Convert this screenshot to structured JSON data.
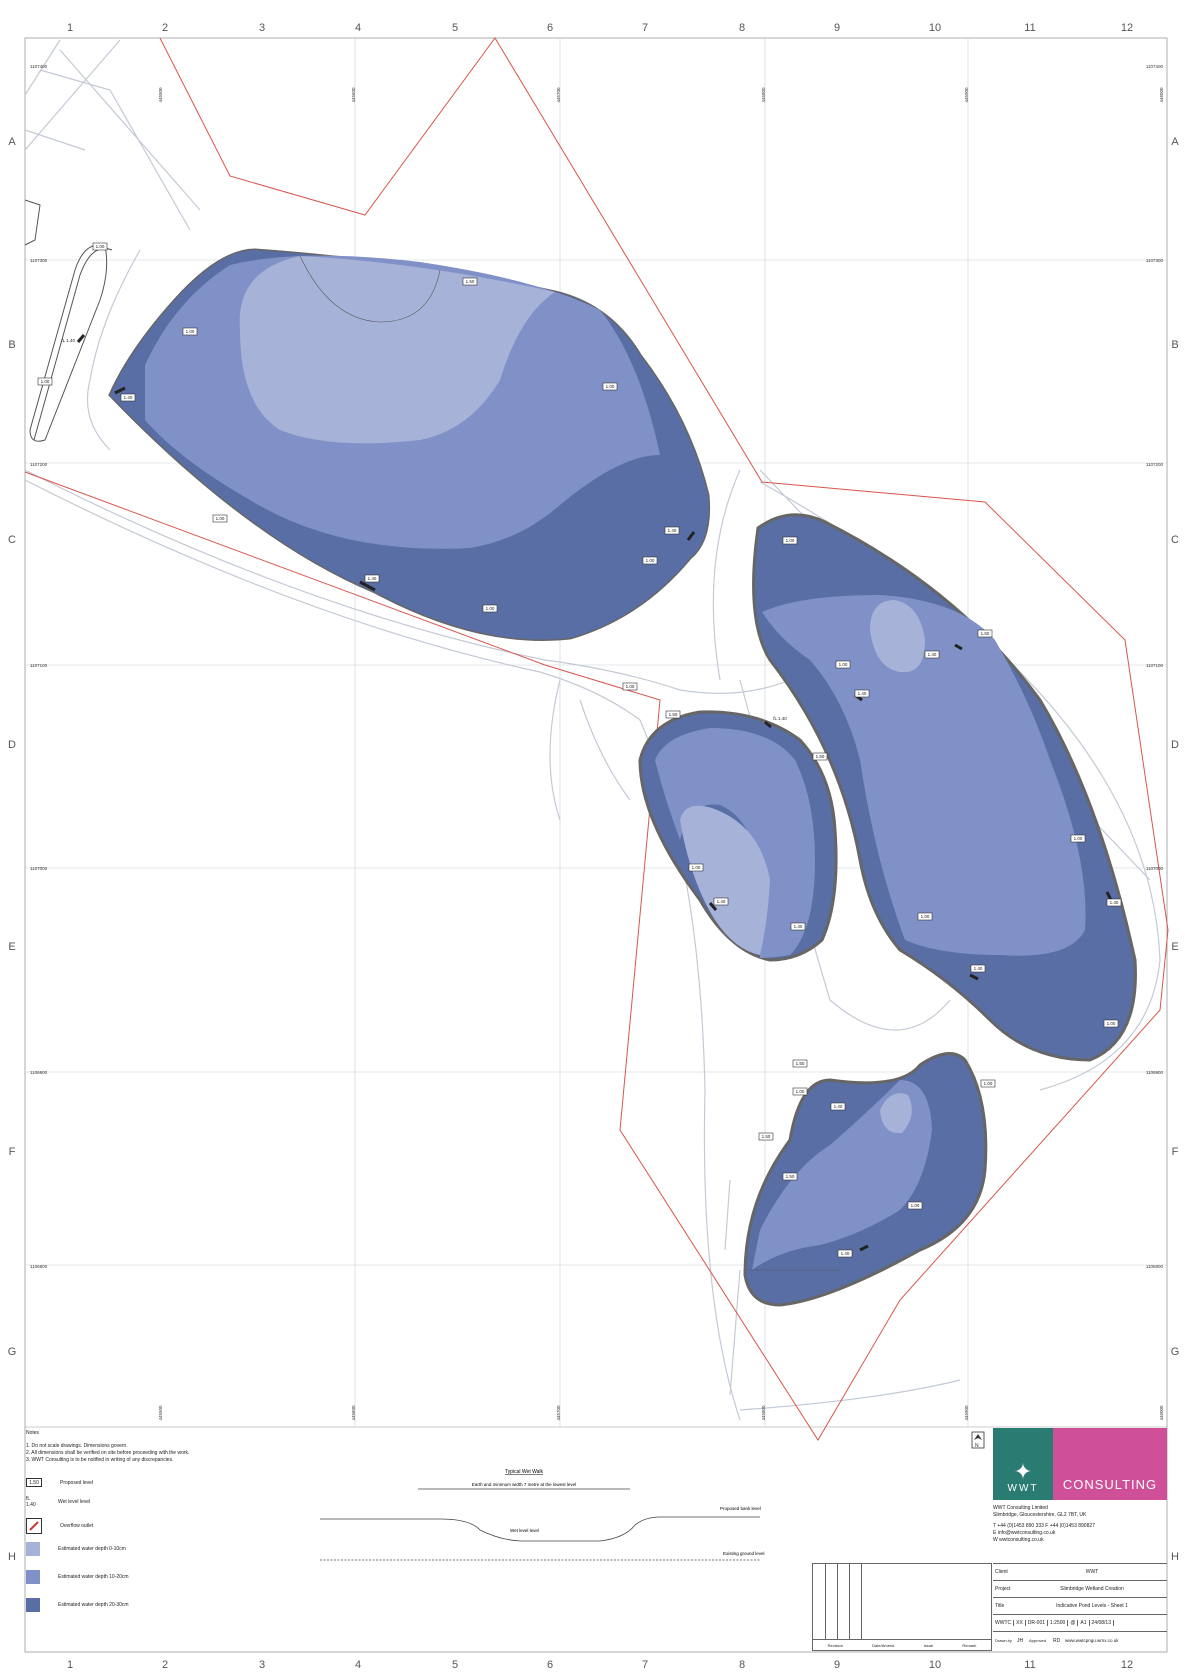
{
  "grid": {
    "columns": [
      "1",
      "2",
      "3",
      "4",
      "5",
      "6",
      "7",
      "8",
      "9",
      "10",
      "11",
      "12"
    ],
    "rows": [
      "A",
      "B",
      "C",
      "D",
      "E",
      "F",
      "G",
      "H"
    ]
  },
  "eastings": [
    "445500",
    "445600",
    "445700",
    "445800",
    "445900",
    "446000"
  ],
  "northings": [
    "1107400",
    "1107300",
    "1107200",
    "1107100",
    "1107000",
    "1106900",
    "1106800",
    "1106700"
  ],
  "levels": {
    "large_pond": [
      "1.50",
      "1.00",
      "1.00",
      "1.00",
      "1.00",
      "1.00",
      "1.00",
      "1.00",
      "1.00",
      "1.00"
    ],
    "wl_labels": [
      "1.40",
      "1.40",
      "1.40",
      "1.40",
      "1.40",
      "1.40",
      "1.40",
      "1.40",
      "1.40",
      "1.40",
      "1.40"
    ],
    "fl_label": "fL 1.40",
    "fl_label_mid": "fL 1.40",
    "misc_150": [
      "1.50",
      "1.50",
      "1.50",
      "1.50",
      "1.50",
      "1.50"
    ],
    "misc_100": [
      "1.00",
      "1.00",
      "1.00",
      "1.00",
      "1.00",
      "1.00",
      "1.00",
      "1.00"
    ]
  },
  "notes": {
    "title": "Notes",
    "items": [
      "1. Do not scale drawings. Dimensions govern.",
      "2. All dimensions shall be verified on site before proceeding with the work.",
      "3. WWT Consulting is to be notified in writing of any discrepancies."
    ]
  },
  "legend": [
    {
      "symbol": "1.50",
      "label": "Proposed level"
    },
    {
      "symbol": "fL 1.40",
      "label": "Wet level level"
    },
    {
      "symbol": "",
      "label": "Overflow outlet"
    },
    {
      "symbol": "",
      "label": "Estimated water depth 0-10cm",
      "color": "#a6b2d8"
    },
    {
      "symbol": "",
      "label": "Estimated water depth 10-20cm",
      "color": "#7f91c6"
    },
    {
      "symbol": "",
      "label": "Estimated water depth 20-30cm",
      "color": "#5a6ea6"
    }
  ],
  "section": {
    "title": "Typical Wet Walk",
    "subtitle": "Earth and minimum width 7 metre at the lowest level",
    "labels": [
      "Proposed bank level",
      "Wet level level",
      "Existing ground level"
    ]
  },
  "company": {
    "logo_left": "WWT",
    "logo_right": "CONSULTING",
    "lines": [
      "WWT Consulting Limited",
      "Slimbridge, Gloucestershire, GL2 7BT, UK",
      "T +44 (0)1453 890 333   F +44 (0)1453 890827",
      "E info@wwtconsulting.co.uk",
      "W wwtconsulting.co.uk"
    ]
  },
  "title_block": {
    "client_label": "Client",
    "client": "WWT",
    "project_label": "Project",
    "project": "Slimbridge Wetland Creation",
    "title_label": "Title",
    "title": "Indicative Pond Levels - Sheet 1",
    "cells": [
      "WWTC",
      "XX",
      "DR-001",
      "1:2500",
      "@",
      "A1",
      "24/08/13"
    ],
    "drawn_label": "Drawn by",
    "drawn": "JH",
    "approved_label": "Approved",
    "approved": "RD",
    "web": "www.wwtcpngu.wrnx.co.uk"
  },
  "revision": {
    "foot": [
      "Revision",
      "Date/Amend",
      "Issue",
      "Remark"
    ]
  },
  "colors": {
    "shallow": "#a6b2d8",
    "medium": "#7f91c6",
    "deep": "#5a6ea6",
    "boundary": "#d9554d",
    "path": "#b8c0cc",
    "logo_teal": "#2a7b72",
    "logo_pink": "#cf4f98"
  }
}
